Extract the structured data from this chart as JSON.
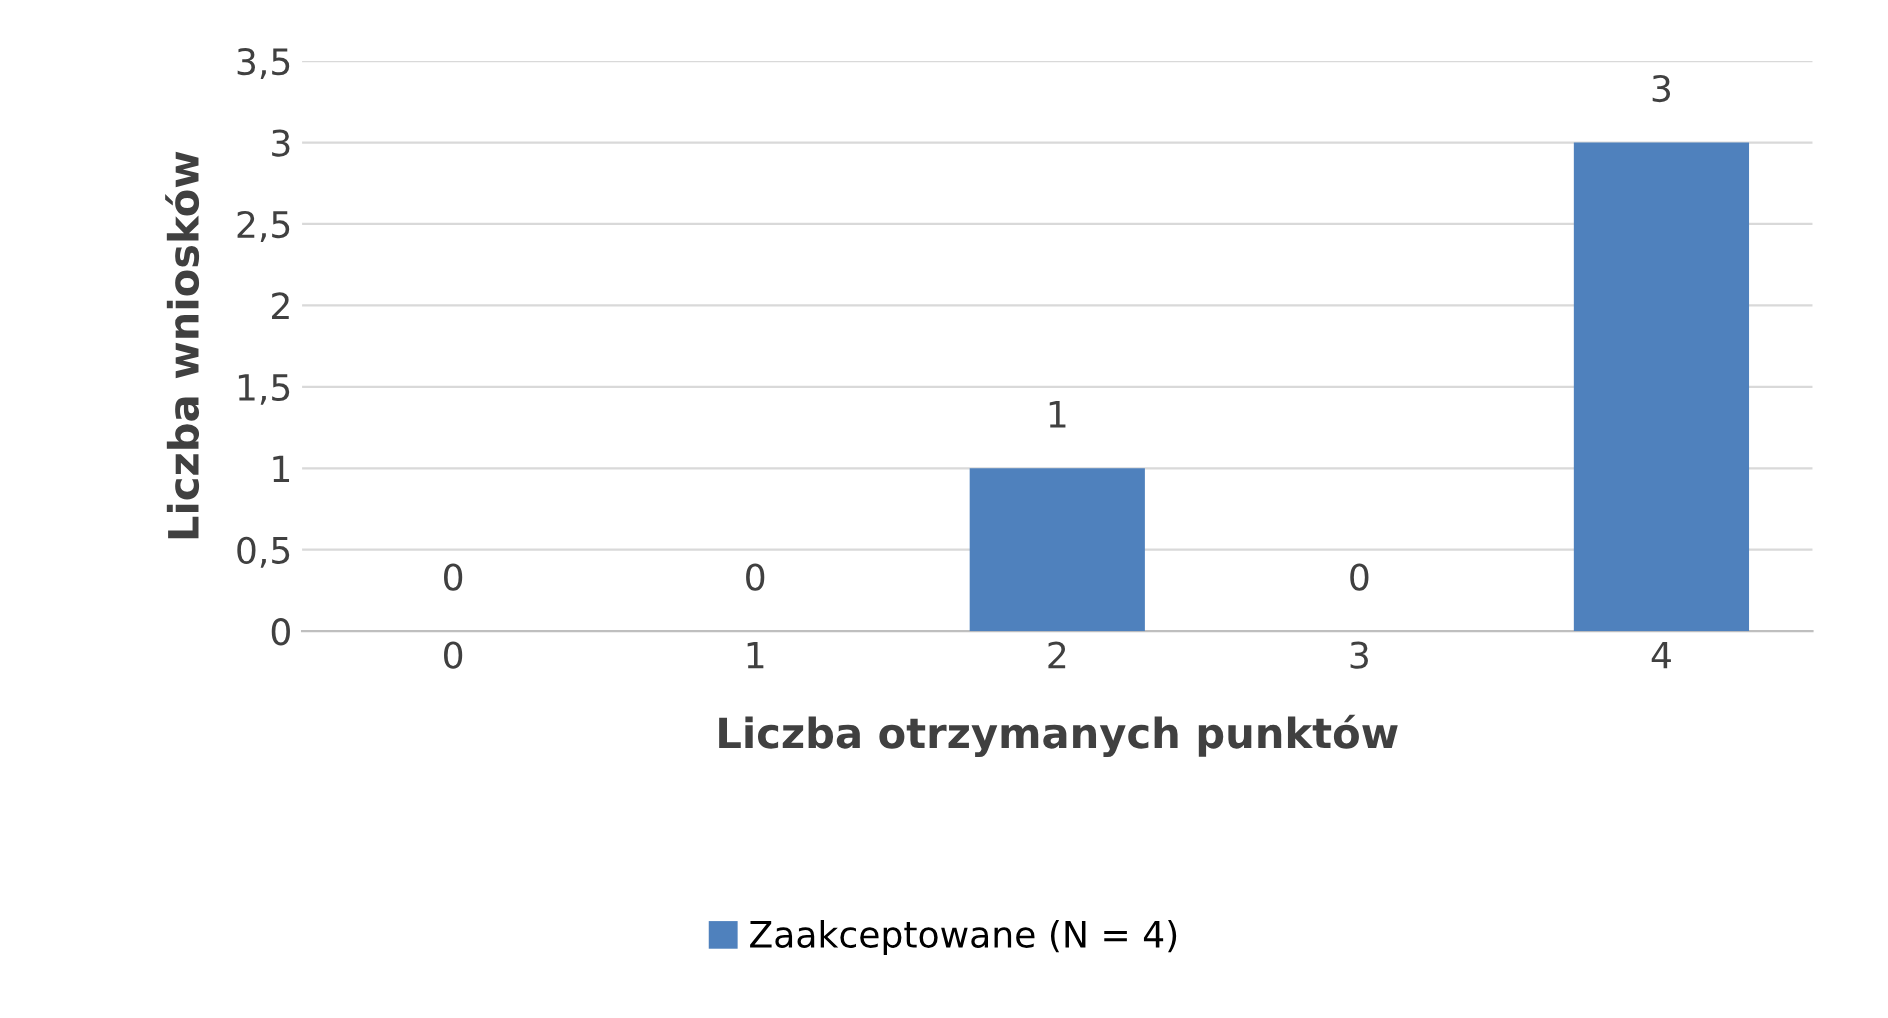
{
  "chart_data": {
    "type": "bar",
    "xlabel": "Liczba otrzymanych punktów",
    "ylabel": "Liczba wniosków",
    "categories": [
      "0",
      "1",
      "2",
      "3",
      "4"
    ],
    "series": [
      {
        "name": "Zaakceptowane (N = 4)",
        "color": "#4f81bd",
        "values": [
          0,
          0,
          1,
          0,
          3
        ]
      }
    ],
    "ylim": [
      0,
      3.5
    ],
    "yticks": [
      0,
      {
        "value": 0.5,
        "label": "0,5"
      },
      1,
      {
        "value": 1.5,
        "label": "1,5"
      },
      2,
      {
        "value": 2.5,
        "label": "2,5"
      },
      3,
      {
        "value": 3.5,
        "label": "3,5"
      }
    ],
    "grid": "y",
    "legend": "bottom",
    "data_labels": true
  }
}
